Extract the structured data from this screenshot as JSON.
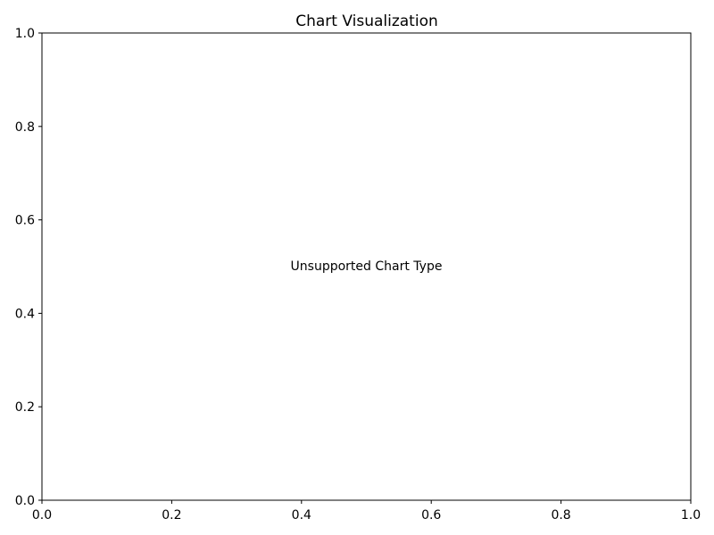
{
  "chart_data": {
    "type": "line",
    "title": "Chart Visualization",
    "annotation": "Unsupported Chart Type",
    "xlabel": "",
    "ylabel": "",
    "xlim": [
      0.0,
      1.0
    ],
    "ylim": [
      0.0,
      1.0
    ],
    "x_ticks": [
      "0.0",
      "0.2",
      "0.4",
      "0.6",
      "0.8",
      "1.0"
    ],
    "y_ticks": [
      "0.0",
      "0.2",
      "0.4",
      "0.6",
      "0.8",
      "1.0"
    ],
    "series": [],
    "grid": false,
    "legend": "none"
  }
}
